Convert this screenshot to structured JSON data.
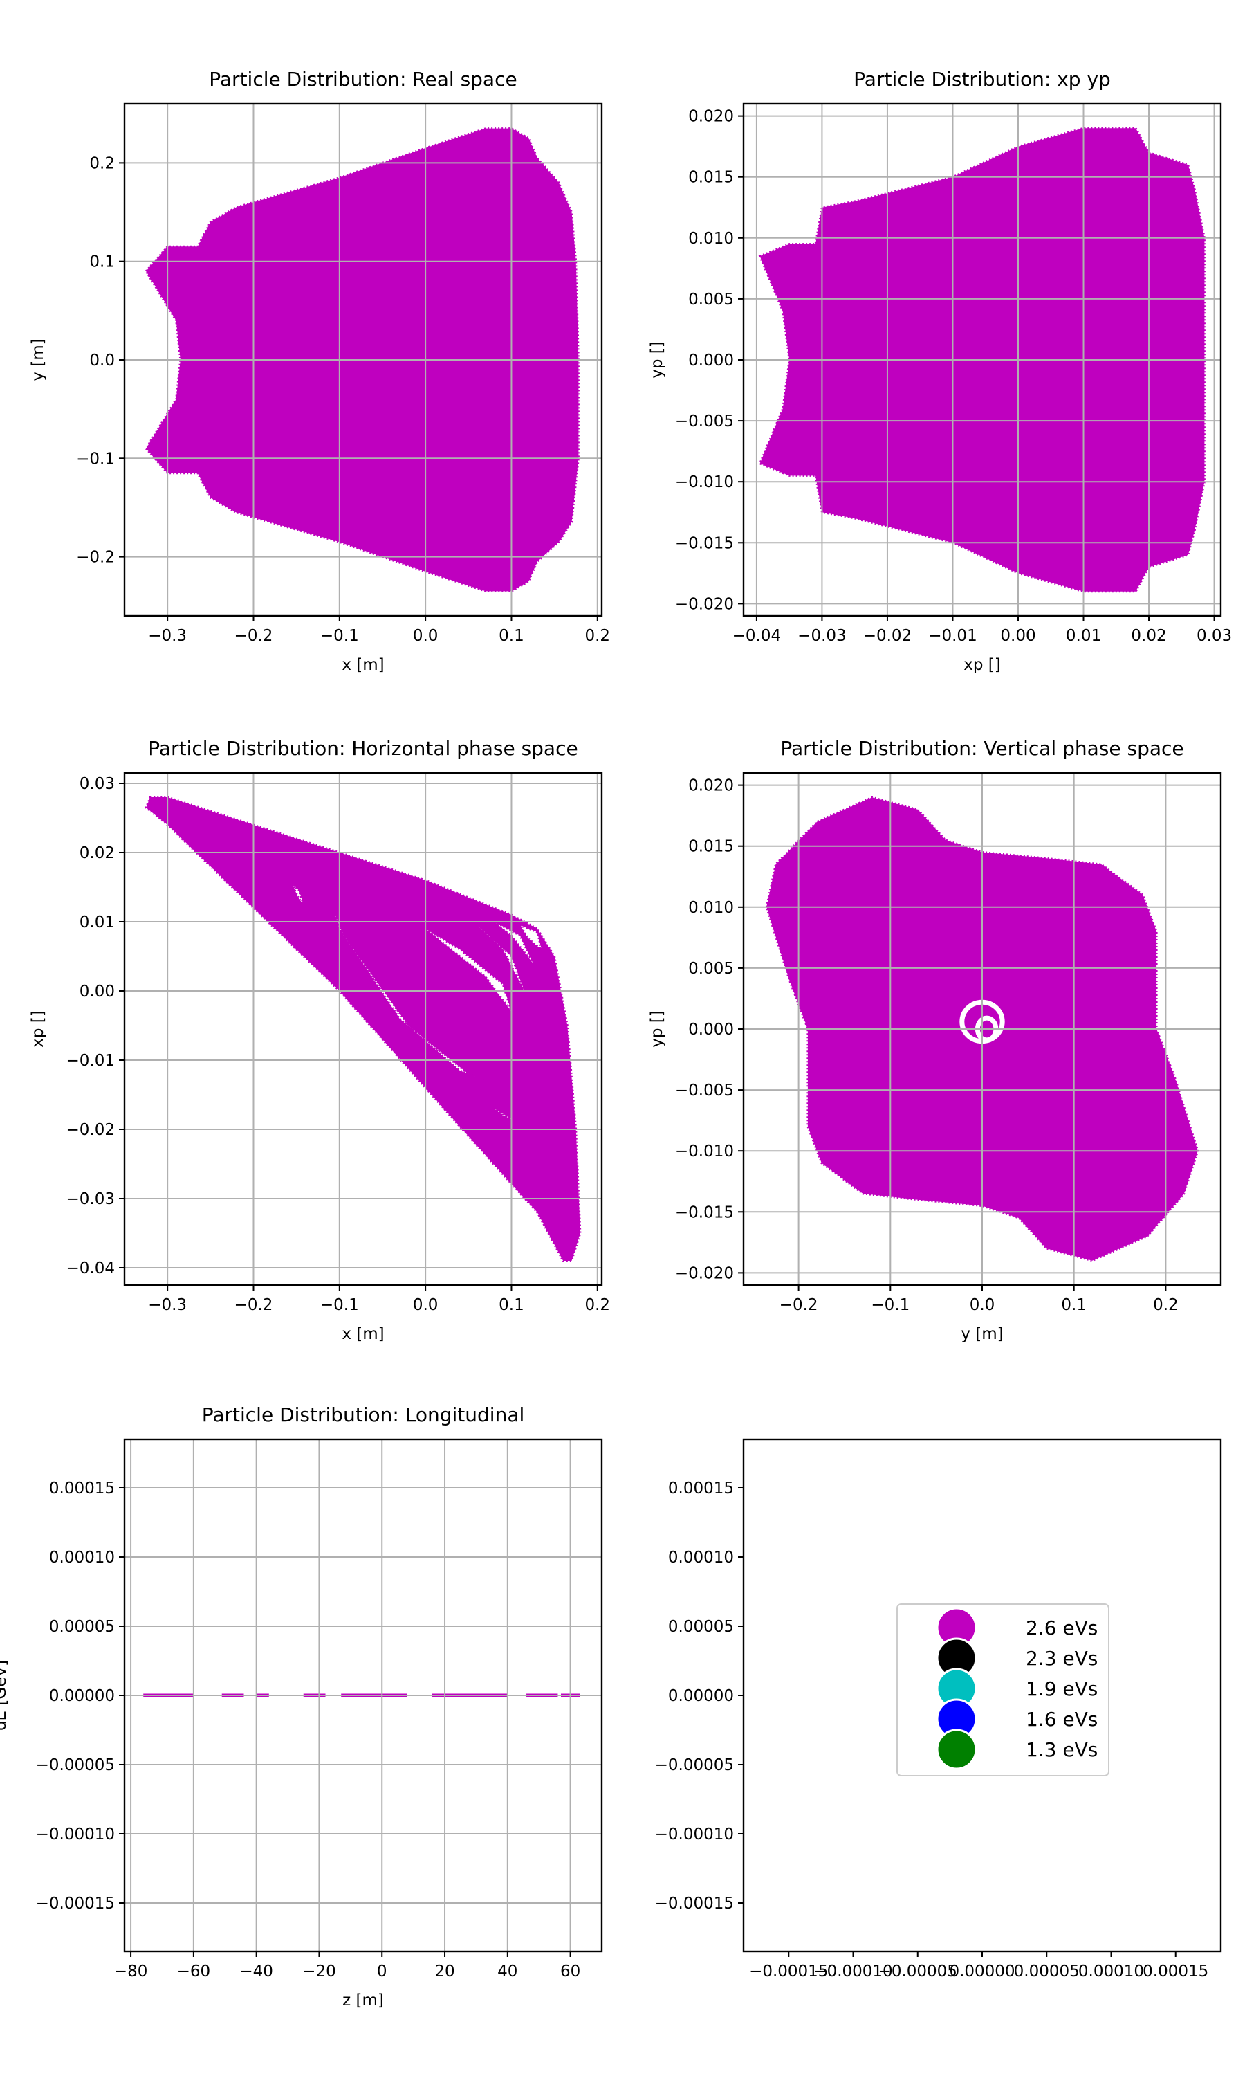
{
  "chart_data": [
    {
      "type": "scatter",
      "title": "Particle Distribution: Real space",
      "xlabel": "x [m]",
      "ylabel": "y [m]",
      "xlim": [
        -0.35,
        0.205
      ],
      "ylim": [
        -0.26,
        0.26
      ],
      "xticks": [
        -0.3,
        -0.2,
        -0.1,
        0.0,
        0.1,
        0.2
      ],
      "xtick_labels": [
        "−0.3",
        "−0.2",
        "−0.1",
        "0.0",
        "0.1",
        "0.2"
      ],
      "yticks": [
        -0.2,
        -0.1,
        0.0,
        0.1,
        0.2
      ],
      "ytick_labels": [
        "−0.2",
        "−0.1",
        "0.0",
        "0.1",
        "0.2"
      ],
      "grid": true,
      "color": "#bf00bf",
      "outline": [
        [
          -0.325,
          0.09
        ],
        [
          -0.3,
          0.115
        ],
        [
          -0.265,
          0.115
        ],
        [
          -0.25,
          0.14
        ],
        [
          -0.22,
          0.155
        ],
        [
          -0.1,
          0.185
        ],
        [
          0.0,
          0.215
        ],
        [
          0.07,
          0.235
        ],
        [
          0.1,
          0.235
        ],
        [
          0.12,
          0.225
        ],
        [
          0.13,
          0.205
        ],
        [
          0.155,
          0.18
        ],
        [
          0.17,
          0.15
        ],
        [
          0.175,
          0.1
        ],
        [
          0.178,
          0.0
        ],
        [
          0.178,
          -0.1
        ],
        [
          0.17,
          -0.165
        ],
        [
          0.155,
          -0.185
        ],
        [
          0.13,
          -0.205
        ],
        [
          0.12,
          -0.225
        ],
        [
          0.1,
          -0.235
        ],
        [
          0.07,
          -0.235
        ],
        [
          0.0,
          -0.215
        ],
        [
          -0.1,
          -0.185
        ],
        [
          -0.22,
          -0.155
        ],
        [
          -0.25,
          -0.14
        ],
        [
          -0.265,
          -0.115
        ],
        [
          -0.3,
          -0.115
        ],
        [
          -0.325,
          -0.09
        ],
        [
          -0.29,
          -0.04
        ],
        [
          -0.285,
          0.0
        ],
        [
          -0.29,
          0.04
        ]
      ]
    },
    {
      "type": "scatter",
      "title": "Particle Distribution: xp yp",
      "xlabel": "xp []",
      "ylabel": "yp []",
      "xlim": [
        -0.042,
        0.031
      ],
      "ylim": [
        -0.021,
        0.021
      ],
      "xticks": [
        -0.04,
        -0.03,
        -0.02,
        -0.01,
        0.0,
        0.01,
        0.02,
        0.03
      ],
      "xtick_labels": [
        "−0.04",
        "−0.03",
        "−0.02",
        "−0.01",
        "0.00",
        "0.01",
        "0.02",
        "0.03"
      ],
      "yticks": [
        -0.02,
        -0.015,
        -0.01,
        -0.005,
        0.0,
        0.005,
        0.01,
        0.015,
        0.02
      ],
      "ytick_labels": [
        "−0.020",
        "−0.015",
        "−0.010",
        "−0.005",
        "0.000",
        "0.005",
        "0.010",
        "0.015",
        "0.020"
      ],
      "grid": true,
      "color": "#bf00bf",
      "outline": [
        [
          -0.0395,
          0.0085
        ],
        [
          -0.035,
          0.0095
        ],
        [
          -0.031,
          0.0095
        ],
        [
          -0.03,
          0.0125
        ],
        [
          -0.025,
          0.013
        ],
        [
          -0.01,
          0.015
        ],
        [
          0.0,
          0.0175
        ],
        [
          0.01,
          0.019
        ],
        [
          0.018,
          0.019
        ],
        [
          0.02,
          0.017
        ],
        [
          0.026,
          0.016
        ],
        [
          0.027,
          0.014
        ],
        [
          0.0285,
          0.01
        ],
        [
          0.0285,
          0.0
        ],
        [
          0.0285,
          -0.01
        ],
        [
          0.027,
          -0.014
        ],
        [
          0.026,
          -0.016
        ],
        [
          0.02,
          -0.017
        ],
        [
          0.018,
          -0.019
        ],
        [
          0.01,
          -0.019
        ],
        [
          0.0,
          -0.0175
        ],
        [
          -0.01,
          -0.015
        ],
        [
          -0.025,
          -0.013
        ],
        [
          -0.03,
          -0.0125
        ],
        [
          -0.031,
          -0.0095
        ],
        [
          -0.035,
          -0.0095
        ],
        [
          -0.0395,
          -0.0085
        ],
        [
          -0.036,
          -0.004
        ],
        [
          -0.035,
          0.0
        ],
        [
          -0.036,
          0.004
        ]
      ]
    },
    {
      "type": "scatter",
      "title": "Particle Distribution: Horizontal phase space",
      "xlabel": "x [m]",
      "ylabel": "xp []",
      "xlim": [
        -0.35,
        0.205
      ],
      "ylim": [
        -0.0425,
        0.0315
      ],
      "xticks": [
        -0.3,
        -0.2,
        -0.1,
        0.0,
        0.1,
        0.2
      ],
      "xtick_labels": [
        "−0.3",
        "−0.2",
        "−0.1",
        "0.0",
        "0.1",
        "0.2"
      ],
      "yticks": [
        -0.04,
        -0.03,
        -0.02,
        -0.01,
        0.0,
        0.01,
        0.02,
        0.03
      ],
      "ytick_labels": [
        "−0.04",
        "−0.03",
        "−0.02",
        "−0.01",
        "0.00",
        "0.01",
        "0.02",
        "0.03"
      ],
      "grid": true,
      "color": "#bf00bf",
      "outline": [
        [
          -0.32,
          0.028
        ],
        [
          -0.3,
          0.028
        ],
        [
          -0.2,
          0.024
        ],
        [
          -0.1,
          0.02
        ],
        [
          0.0,
          0.016
        ],
        [
          0.05,
          0.0135
        ],
        [
          0.1,
          0.011
        ],
        [
          0.13,
          0.009
        ],
        [
          0.15,
          0.005
        ],
        [
          0.165,
          -0.005
        ],
        [
          0.175,
          -0.02
        ],
        [
          0.18,
          -0.035
        ],
        [
          0.17,
          -0.039
        ],
        [
          0.16,
          -0.039
        ],
        [
          0.13,
          -0.032
        ],
        [
          0.05,
          -0.021
        ],
        [
          0.0,
          -0.014
        ],
        [
          -0.1,
          0.0
        ],
        [
          -0.2,
          0.012
        ],
        [
          -0.3,
          0.024
        ],
        [
          -0.325,
          0.0265
        ]
      ],
      "holes": [
        [
          [
            -0.155,
            0.0155
          ],
          [
            -0.148,
            0.0135
          ],
          [
            -0.142,
            0.0125
          ],
          [
            -0.147,
            0.0145
          ]
        ],
        [
          [
            -0.105,
            0.011
          ],
          [
            -0.095,
            0.008
          ],
          [
            -0.02,
            -0.005
          ],
          [
            0.05,
            -0.012
          ],
          [
            0.08,
            -0.0135
          ],
          [
            0.04,
            -0.0115
          ],
          [
            -0.03,
            -0.004
          ],
          [
            -0.1,
            0.009
          ]
        ],
        [
          [
            0.08,
            -0.017
          ],
          [
            0.1,
            -0.0185
          ],
          [
            0.11,
            -0.019
          ],
          [
            0.09,
            -0.018
          ]
        ],
        [
          [
            0.0,
            0.009
          ],
          [
            0.04,
            0.006
          ],
          [
            0.09,
            0.001
          ],
          [
            0.1,
            -0.003
          ],
          [
            0.07,
            0.002
          ],
          [
            0.02,
            0.007
          ]
        ],
        [
          [
            0.06,
            0.0095
          ],
          [
            0.1,
            0.005
          ],
          [
            0.115,
            0.0
          ],
          [
            0.09,
            0.006
          ]
        ],
        [
          [
            0.08,
            0.01
          ],
          [
            0.11,
            0.008
          ],
          [
            0.125,
            0.004
          ],
          [
            0.1,
            0.008
          ]
        ],
        [
          [
            0.11,
            0.0095
          ],
          [
            0.13,
            0.0085
          ],
          [
            0.135,
            0.006
          ],
          [
            0.12,
            0.0075
          ]
        ]
      ]
    },
    {
      "type": "scatter",
      "title": "Particle Distribution: Vertical phase space",
      "xlabel": "y [m]",
      "ylabel": "yp []",
      "xlim": [
        -0.26,
        0.26
      ],
      "ylim": [
        -0.021,
        0.021
      ],
      "xticks": [
        -0.2,
        -0.1,
        0.0,
        0.1,
        0.2
      ],
      "xtick_labels": [
        "−0.2",
        "−0.1",
        "0.0",
        "0.1",
        "0.2"
      ],
      "yticks": [
        -0.02,
        -0.015,
        -0.01,
        -0.005,
        0.0,
        0.005,
        0.01,
        0.015,
        0.02
      ],
      "ytick_labels": [
        "−0.020",
        "−0.015",
        "−0.010",
        "−0.005",
        "0.000",
        "0.005",
        "0.010",
        "0.015",
        "0.020"
      ],
      "grid": true,
      "color": "#bf00bf",
      "outline": [
        [
          -0.235,
          0.01
        ],
        [
          -0.225,
          0.0135
        ],
        [
          -0.18,
          0.017
        ],
        [
          -0.12,
          0.019
        ],
        [
          -0.07,
          0.018
        ],
        [
          -0.04,
          0.0155
        ],
        [
          0.0,
          0.0145
        ],
        [
          0.07,
          0.014
        ],
        [
          0.13,
          0.0135
        ],
        [
          0.175,
          0.011
        ],
        [
          0.19,
          0.008
        ],
        [
          0.19,
          0.004
        ],
        [
          0.19,
          0.0
        ],
        [
          0.21,
          -0.004
        ],
        [
          0.235,
          -0.01
        ],
        [
          0.22,
          -0.0135
        ],
        [
          0.18,
          -0.017
        ],
        [
          0.12,
          -0.019
        ],
        [
          0.07,
          -0.018
        ],
        [
          0.04,
          -0.0155
        ],
        [
          0.0,
          -0.0145
        ],
        [
          -0.07,
          -0.014
        ],
        [
          -0.13,
          -0.0135
        ],
        [
          -0.175,
          -0.011
        ],
        [
          -0.19,
          -0.008
        ],
        [
          -0.19,
          -0.004
        ],
        [
          -0.19,
          0.0
        ],
        [
          -0.21,
          0.004
        ]
      ],
      "rings": [
        {
          "cx": 0.0,
          "cy": 0.0006,
          "rx": 0.022,
          "ry": 0.0016
        },
        {
          "cx": 0.005,
          "cy": 0.0,
          "rx": 0.01,
          "ry": 0.0009
        }
      ]
    },
    {
      "type": "scatter",
      "title": "Particle Distribution: Longitudinal",
      "xlabel": "z [m]",
      "ylabel": "dE [GeV]",
      "xlim": [
        -82,
        70
      ],
      "ylim": [
        -0.000185,
        0.000185
      ],
      "xticks": [
        -80,
        -60,
        -40,
        -20,
        0,
        20,
        40,
        60
      ],
      "xtick_labels": [
        "−80",
        "−60",
        "−40",
        "−20",
        "0",
        "20",
        "40",
        "60"
      ],
      "yticks": [
        -0.00015,
        -0.0001,
        -5e-05,
        0.0,
        5e-05,
        0.0001,
        0.00015
      ],
      "ytick_labels": [
        "−0.00015",
        "−0.00010",
        "−0.00005",
        "0.00000",
        "0.00005",
        "0.00010",
        "0.00015"
      ],
      "grid": true,
      "color": "#bf00bf",
      "segments": [
        [
          -76,
          -60
        ],
        [
          -51,
          -44
        ],
        [
          -40,
          -36
        ],
        [
          -25,
          -18
        ],
        [
          -13,
          8
        ],
        [
          16,
          40
        ],
        [
          46,
          56
        ],
        [
          57,
          63
        ]
      ],
      "segment_dE": 0.0
    },
    {
      "type": "scatter",
      "title": "",
      "xlabel": "",
      "ylabel": "",
      "xlim": [
        -0.000185,
        0.000185
      ],
      "ylim": [
        -0.000185,
        0.000185
      ],
      "xticks": [
        -0.00015,
        -0.0001,
        -5e-05,
        0.0,
        5e-05,
        0.0001,
        0.00015
      ],
      "xtick_labels": [
        "−0.00015",
        "−0.00010",
        "−0.00005",
        "0.00000",
        "0.00005",
        "0.00010",
        "0.00015"
      ],
      "yticks": [
        -0.00015,
        -0.0001,
        -5e-05,
        0.0,
        5e-05,
        0.0001,
        0.00015
      ],
      "ytick_labels": [
        "−0.00015",
        "−0.00010",
        "−0.00005",
        "0.00000",
        "0.00005",
        "0.00010",
        "0.00015"
      ],
      "grid": false,
      "legend": {
        "placement": "center",
        "entries": [
          {
            "label": "2.6 eVs",
            "color": "#bf00bf"
          },
          {
            "label": "2.3 eVs",
            "color": "#000000"
          },
          {
            "label": "1.9 eVs",
            "color": "#00bfbf"
          },
          {
            "label": "1.6 eVs",
            "color": "#0000ff"
          },
          {
            "label": "1.3 eVs",
            "color": "#008000"
          }
        ]
      }
    }
  ]
}
